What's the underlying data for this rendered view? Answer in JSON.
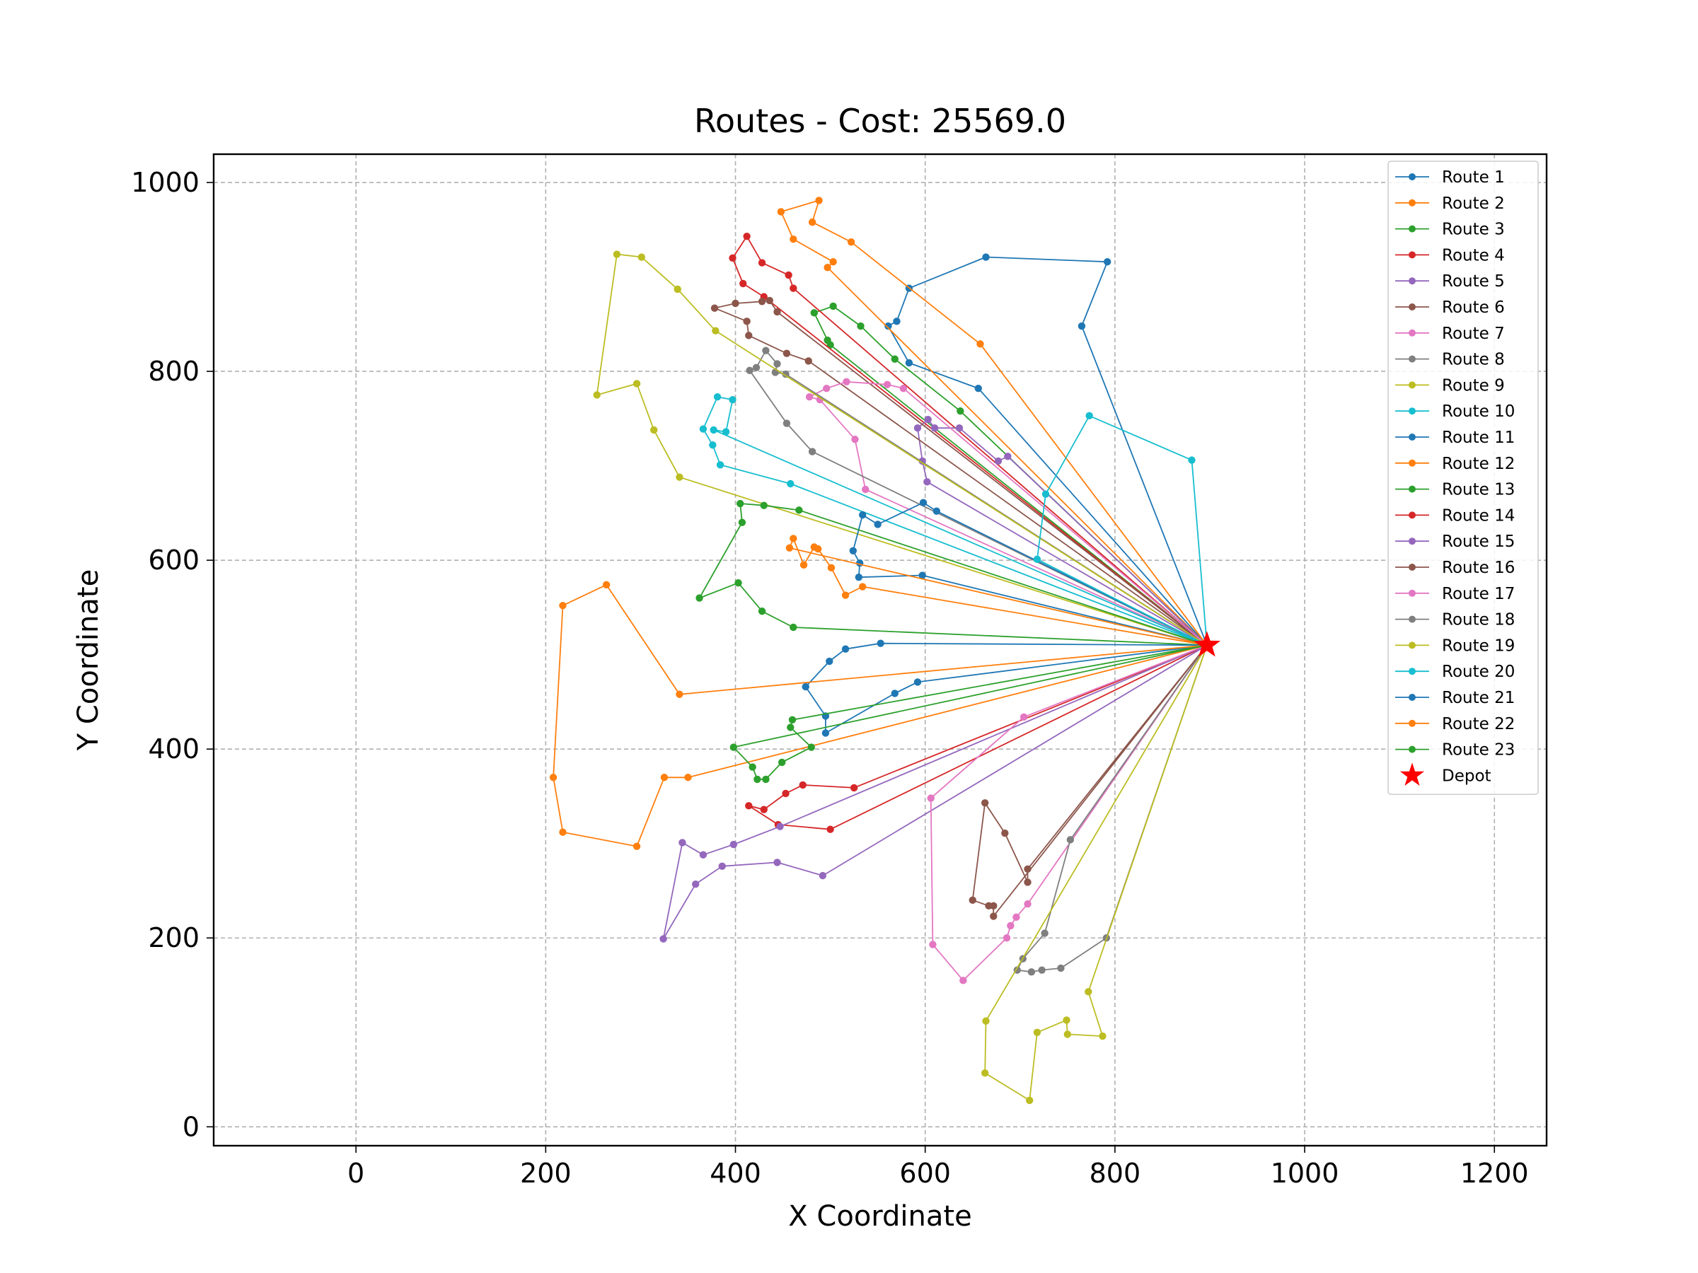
{
  "chart_data": {
    "type": "line",
    "title": "Routes - Cost: 25569.0",
    "xlabel": "X Coordinate",
    "ylabel": "Y Coordinate",
    "xlim": [
      -150,
      1255
    ],
    "ylim": [
      -20,
      1030
    ],
    "xticks": [
      0,
      200,
      400,
      600,
      800,
      1000,
      1200
    ],
    "yticks": [
      0,
      200,
      400,
      600,
      800,
      1000
    ],
    "grid": true,
    "legend_position": "top-right",
    "depot": {
      "name": "Depot",
      "x": 897,
      "y": 510,
      "color": "#ff0000"
    },
    "series": [
      {
        "name": "Route 1",
        "color": "#1f77b4",
        "points": [
          [
            897,
            510
          ],
          [
            656,
            782
          ],
          [
            583,
            809
          ],
          [
            561,
            848
          ],
          [
            570,
            853
          ],
          [
            583,
            888
          ],
          [
            664,
            921
          ],
          [
            792,
            916
          ],
          [
            765,
            848
          ],
          [
            897,
            510
          ]
        ]
      },
      {
        "name": "Route 2",
        "color": "#ff7f0e",
        "points": [
          [
            897,
            510
          ],
          [
            658,
            829
          ],
          [
            522,
            937
          ],
          [
            481,
            958
          ],
          [
            488,
            981
          ],
          [
            448,
            969
          ],
          [
            461,
            940
          ],
          [
            503,
            916
          ],
          [
            497,
            910
          ],
          [
            897,
            510
          ]
        ]
      },
      {
        "name": "Route 3",
        "color": "#2ca02c",
        "points": [
          [
            897,
            510
          ],
          [
            637,
            758
          ],
          [
            568,
            813
          ],
          [
            532,
            848
          ],
          [
            503,
            869
          ],
          [
            483,
            862
          ],
          [
            497,
            833
          ],
          [
            500,
            828
          ],
          [
            897,
            510
          ]
        ]
      },
      {
        "name": "Route 4",
        "color": "#d62728",
        "points": [
          [
            897,
            510
          ],
          [
            461,
            888
          ],
          [
            456,
            902
          ],
          [
            428,
            915
          ],
          [
            412,
            943
          ],
          [
            397,
            920
          ],
          [
            408,
            893
          ],
          [
            430,
            879
          ],
          [
            897,
            510
          ]
        ]
      },
      {
        "name": "Route 5",
        "color": "#9467bd",
        "points": [
          [
            897,
            510
          ],
          [
            687,
            710
          ],
          [
            677,
            705
          ],
          [
            636,
            740
          ],
          [
            610,
            740
          ],
          [
            603,
            749
          ],
          [
            592,
            740
          ],
          [
            597,
            705
          ],
          [
            602,
            683
          ],
          [
            897,
            510
          ]
        ]
      },
      {
        "name": "Route 6",
        "color": "#8c564b",
        "points": [
          [
            897,
            510
          ],
          [
            477,
            811
          ],
          [
            454,
            819
          ],
          [
            414,
            838
          ],
          [
            412,
            853
          ],
          [
            378,
            867
          ],
          [
            400,
            872
          ],
          [
            428,
            874
          ],
          [
            436,
            875
          ],
          [
            444,
            863
          ],
          [
            897,
            510
          ]
        ]
      },
      {
        "name": "Route 7",
        "color": "#e377c2",
        "points": [
          [
            897,
            510
          ],
          [
            577,
            782
          ],
          [
            560,
            786
          ],
          [
            517,
            789
          ],
          [
            496,
            782
          ],
          [
            478,
            773
          ],
          [
            489,
            770
          ],
          [
            526,
            728
          ],
          [
            537,
            675
          ],
          [
            897,
            510
          ]
        ]
      },
      {
        "name": "Route 8",
        "color": "#7f7f7f",
        "points": [
          [
            897,
            510
          ],
          [
            481,
            715
          ],
          [
            454,
            745
          ],
          [
            415,
            801
          ],
          [
            422,
            804
          ],
          [
            432,
            822
          ],
          [
            444,
            808
          ],
          [
            442,
            799
          ],
          [
            453,
            797
          ],
          [
            897,
            510
          ]
        ]
      },
      {
        "name": "Route 9",
        "color": "#bcbd22",
        "points": [
          [
            897,
            510
          ],
          [
            379,
            843
          ],
          [
            339,
            887
          ],
          [
            301,
            921
          ],
          [
            275,
            924
          ],
          [
            254,
            775
          ],
          [
            296,
            787
          ],
          [
            314,
            738
          ],
          [
            341,
            688
          ],
          [
            897,
            510
          ]
        ]
      },
      {
        "name": "Route 10",
        "color": "#17becf",
        "points": [
          [
            897,
            510
          ],
          [
            458,
            681
          ],
          [
            384,
            701
          ],
          [
            376,
            722
          ],
          [
            366,
            739
          ],
          [
            381,
            773
          ],
          [
            397,
            770
          ],
          [
            390,
            736
          ],
          [
            377,
            738
          ],
          [
            897,
            510
          ]
        ]
      },
      {
        "name": "Route 11",
        "color": "#1f77b4",
        "points": [
          [
            897,
            510
          ],
          [
            612,
            652
          ],
          [
            598,
            661
          ],
          [
            550,
            638
          ],
          [
            534,
            648
          ],
          [
            524,
            610
          ],
          [
            531,
            597
          ],
          [
            530,
            582
          ],
          [
            597,
            584
          ],
          [
            897,
            510
          ]
        ]
      },
      {
        "name": "Route 12",
        "color": "#ff7f0e",
        "points": [
          [
            897,
            510
          ],
          [
            534,
            572
          ],
          [
            516,
            563
          ],
          [
            501,
            592
          ],
          [
            487,
            612
          ],
          [
            483,
            614
          ],
          [
            472,
            595
          ],
          [
            461,
            623
          ],
          [
            457,
            613
          ],
          [
            897,
            510
          ]
        ]
      },
      {
        "name": "Route 13",
        "color": "#2ca02c",
        "points": [
          [
            897,
            510
          ],
          [
            467,
            653
          ],
          [
            430,
            658
          ],
          [
            405,
            660
          ],
          [
            407,
            640
          ],
          [
            362,
            560
          ],
          [
            403,
            576
          ],
          [
            428,
            546
          ],
          [
            461,
            529
          ],
          [
            897,
            510
          ]
        ]
      },
      {
        "name": "Route 14",
        "color": "#d62728",
        "points": [
          [
            897,
            510
          ],
          [
            525,
            359
          ],
          [
            471,
            362
          ],
          [
            453,
            353
          ],
          [
            430,
            336
          ],
          [
            414,
            340
          ],
          [
            445,
            320
          ],
          [
            500,
            315
          ],
          [
            897,
            510
          ]
        ]
      },
      {
        "name": "Route 15",
        "color": "#9467bd",
        "points": [
          [
            897,
            510
          ],
          [
            447,
            318
          ],
          [
            398,
            299
          ],
          [
            366,
            288
          ],
          [
            344,
            301
          ],
          [
            324,
            199
          ],
          [
            358,
            257
          ],
          [
            386,
            276
          ],
          [
            444,
            280
          ],
          [
            492,
            266
          ],
          [
            897,
            510
          ]
        ]
      },
      {
        "name": "Route 16",
        "color": "#8c564b",
        "points": [
          [
            897,
            510
          ],
          [
            708,
            273
          ],
          [
            708,
            259
          ],
          [
            684,
            311
          ],
          [
            663,
            343
          ],
          [
            650,
            240
          ],
          [
            667,
            234
          ],
          [
            672,
            234
          ],
          [
            672,
            223
          ],
          [
            897,
            510
          ]
        ]
      },
      {
        "name": "Route 17",
        "color": "#e377c2",
        "points": [
          [
            897,
            510
          ],
          [
            704,
            434
          ],
          [
            606,
            348
          ],
          [
            608,
            193
          ],
          [
            640,
            155
          ],
          [
            686,
            200
          ],
          [
            690,
            213
          ],
          [
            696,
            222
          ],
          [
            708,
            236
          ],
          [
            897,
            510
          ]
        ]
      },
      {
        "name": "Route 18",
        "color": "#7f7f7f",
        "points": [
          [
            897,
            510
          ],
          [
            753,
            304
          ],
          [
            726,
            205
          ],
          [
            703,
            178
          ],
          [
            697,
            166
          ],
          [
            712,
            164
          ],
          [
            723,
            166
          ],
          [
            743,
            168
          ],
          [
            791,
            200
          ],
          [
            897,
            510
          ]
        ]
      },
      {
        "name": "Route 19",
        "color": "#bcbd22",
        "points": [
          [
            897,
            510
          ],
          [
            772,
            143
          ],
          [
            787,
            96
          ],
          [
            750,
            98
          ],
          [
            749,
            113
          ],
          [
            718,
            100
          ],
          [
            710,
            28
          ],
          [
            663,
            57
          ],
          [
            664,
            112
          ],
          [
            897,
            510
          ]
        ]
      },
      {
        "name": "Route 20",
        "color": "#17becf",
        "points": [
          [
            897,
            510
          ],
          [
            881,
            706
          ],
          [
            773,
            753
          ],
          [
            727,
            670
          ],
          [
            718,
            601
          ],
          [
            897,
            510
          ]
        ]
      },
      {
        "name": "Route 21",
        "color": "#1f77b4",
        "points": [
          [
            897,
            510
          ],
          [
            553,
            512
          ],
          [
            516,
            506
          ],
          [
            499,
            493
          ],
          [
            474,
            466
          ],
          [
            495,
            435
          ],
          [
            495,
            417
          ],
          [
            568,
            459
          ],
          [
            592,
            471
          ],
          [
            897,
            510
          ]
        ]
      },
      {
        "name": "Route 22",
        "color": "#ff7f0e",
        "points": [
          [
            897,
            510
          ],
          [
            341,
            458
          ],
          [
            264,
            574
          ],
          [
            218,
            552
          ],
          [
            208,
            370
          ],
          [
            218,
            312
          ],
          [
            296,
            297
          ],
          [
            325,
            370
          ],
          [
            350,
            370
          ],
          [
            897,
            510
          ]
        ]
      },
      {
        "name": "Route 23",
        "color": "#2ca02c",
        "points": [
          [
            897,
            510
          ],
          [
            460,
            431
          ],
          [
            458,
            423
          ],
          [
            480,
            402
          ],
          [
            449,
            386
          ],
          [
            432,
            368
          ],
          [
            423,
            368
          ],
          [
            418,
            381
          ],
          [
            398,
            402
          ],
          [
            897,
            510
          ]
        ]
      }
    ]
  }
}
